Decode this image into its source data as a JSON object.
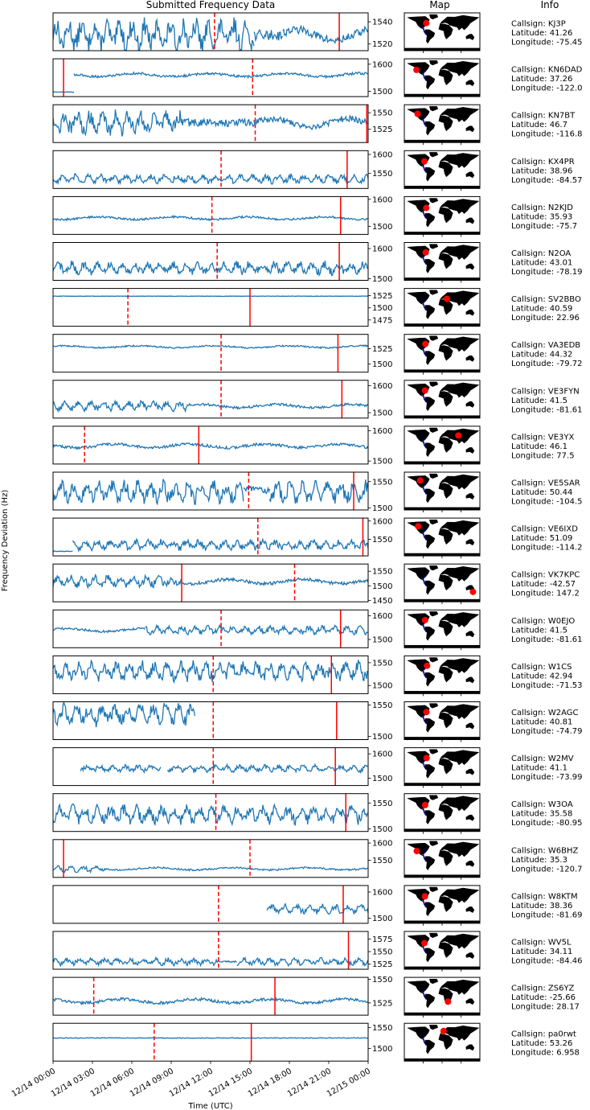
{
  "titles": {
    "data": "Submitted Frequency Data",
    "map": "Map",
    "info": "Info"
  },
  "ylabel": "Frequency Deviation (Hz)",
  "xlabel": "Time (UTC)",
  "colors": {
    "line": "#1f77b4",
    "marker": "#ff0000",
    "map_line": "#00008b"
  },
  "chart_data": {
    "type": "line",
    "x_ticks": [
      "12/14 00:00",
      "12/14 03:00",
      "12/14 06:00",
      "12/14 09:00",
      "12/14 12:00",
      "12/14 15:00",
      "12/14 18:00",
      "12/14 21:00",
      "12/15 00:00"
    ],
    "xlim_hours": [
      0,
      24
    ],
    "stations": [
      {
        "callsign": "KJ3P",
        "lat": "41.26",
        "lon": "-75.45",
        "yticks": [
          1520,
          1540
        ],
        "ylim": [
          1514,
          1548
        ],
        "base": 1528,
        "amp": 12,
        "style": "fast",
        "seg": [
          [
            0,
            15.3,
            "fast"
          ],
          [
            15.3,
            17.5,
            "flat"
          ],
          [
            17.5,
            24,
            "slow"
          ]
        ],
        "solid": [
          21.8
        ],
        "dashed": [
          12.3
        ]
      },
      {
        "callsign": "KN6DAD",
        "lat": "37.26",
        "lon": "-122.0",
        "yticks": [
          1500,
          1600
        ],
        "ylim": [
          1480,
          1620
        ],
        "base": 1560,
        "amp": 15,
        "style": "slow",
        "seg": [
          [
            0,
            1.6,
            "low"
          ],
          [
            1.6,
            24,
            "slow"
          ]
        ],
        "solid": [
          0.8
        ],
        "dashed": [
          15.2
        ]
      },
      {
        "callsign": "KN7BT",
        "lat": "46.7",
        "lon": "-116.8",
        "yticks": [
          1525,
          1550
        ],
        "ylim": [
          1505,
          1562
        ],
        "base": 1535,
        "amp": 15,
        "style": "fast",
        "seg": [
          [
            0,
            9.8,
            "fast"
          ],
          [
            9.8,
            15.3,
            "flat"
          ],
          [
            15.3,
            24,
            "slow"
          ]
        ],
        "solid": [
          23.9
        ],
        "dashed": [
          15.4
        ]
      },
      {
        "callsign": "KX4PR",
        "lat": "38.96",
        "lon": "-84.57",
        "yticks": [
          1550,
          1600
        ],
        "ylim": [
          1510,
          1610
        ],
        "base": 1535,
        "amp": 10,
        "style": "fast",
        "seg": [
          [
            0,
            24,
            "fast"
          ]
        ],
        "solid": [
          22.4
        ],
        "dashed": [
          12.8
        ]
      },
      {
        "callsign": "N2KJD",
        "lat": "35.93",
        "lon": "-75.7",
        "yticks": [
          1500,
          1600
        ],
        "ylim": [
          1470,
          1610
        ],
        "base": 1530,
        "amp": 12,
        "style": "slow",
        "seg": [
          [
            0,
            24,
            "slow"
          ]
        ],
        "solid": [
          21.9
        ],
        "dashed": [
          12.1
        ]
      },
      {
        "callsign": "N2OA",
        "lat": "43.01",
        "lon": "-78.19",
        "yticks": [
          1500,
          1600
        ],
        "ylim": [
          1495,
          1620
        ],
        "base": 1535,
        "amp": 18,
        "style": "fast",
        "seg": [
          [
            0,
            24,
            "fast"
          ]
        ],
        "solid": [
          21.8
        ],
        "dashed": [
          12.5
        ]
      },
      {
        "callsign": "SV2BBO",
        "lat": "40.59",
        "lon": "22.96",
        "yticks": [
          1475,
          1500,
          1525
        ],
        "ylim": [
          1462,
          1540
        ],
        "base": 1524,
        "amp": 1,
        "style": "flat",
        "seg": [
          [
            0,
            24,
            "flat"
          ]
        ],
        "solid": [
          15.0
        ],
        "dashed": [
          5.7
        ]
      },
      {
        "callsign": "VA3EDB",
        "lat": "44.32",
        "lon": "-79.72",
        "yticks": [
          1500,
          1525
        ],
        "ylim": [
          1487,
          1548
        ],
        "base": 1528,
        "amp": 4,
        "style": "slow",
        "seg": [
          [
            0,
            24,
            "slow"
          ]
        ],
        "solid": [
          21.7
        ],
        "dashed": [
          12.8
        ]
      },
      {
        "callsign": "VE3FYN",
        "lat": "41.5",
        "lon": "-81.61",
        "yticks": [
          1500,
          1600
        ],
        "ylim": [
          1480,
          1620
        ],
        "base": 1525,
        "amp": 15,
        "style": "fast",
        "seg": [
          [
            0,
            10.2,
            "fast"
          ],
          [
            10.2,
            24,
            "slow"
          ]
        ],
        "solid": [
          22.0
        ],
        "dashed": [
          12.8
        ]
      },
      {
        "callsign": "VE3YX",
        "lat": "46.1",
        "lon": "77.5",
        "yticks": [
          1500,
          1600
        ],
        "ylim": [
          1490,
          1615
        ],
        "base": 1550,
        "amp": 15,
        "style": "slow",
        "seg": [
          [
            0,
            24,
            "slow"
          ]
        ],
        "solid": [
          11.1
        ],
        "dashed": [
          2.4
        ]
      },
      {
        "callsign": "VE5SAR",
        "lat": "50.44",
        "lon": "-104.5",
        "yticks": [
          1500,
          1550
        ],
        "ylim": [
          1496,
          1568
        ],
        "base": 1530,
        "amp": 18,
        "style": "fast",
        "seg": [
          [
            0,
            14.5,
            "fast"
          ],
          [
            14.5,
            16.5,
            "slow"
          ],
          [
            16.5,
            24,
            "fast"
          ]
        ],
        "solid": [
          22.9
        ],
        "dashed": [
          14.9
        ]
      },
      {
        "callsign": "VE6IXD",
        "lat": "51.09",
        "lon": "-114.2",
        "yticks": [
          1550,
          1600
        ],
        "ylim": [
          1505,
          1608
        ],
        "base": 1535,
        "amp": 12,
        "style": "fast",
        "seg": [
          [
            0,
            1.5,
            "low"
          ],
          [
            1.5,
            24,
            "fast"
          ]
        ],
        "solid": [
          23.6
        ],
        "dashed": [
          15.6
        ]
      },
      {
        "callsign": "VK7KPC",
        "lat": "-42.57",
        "lon": "147.2",
        "yticks": [
          1450,
          1500,
          1550
        ],
        "ylim": [
          1445,
          1575
        ],
        "base": 1515,
        "amp": 18,
        "style": "slow",
        "seg": [
          [
            0,
            9.8,
            "fast"
          ],
          [
            9.8,
            18.5,
            "slow"
          ],
          [
            18.5,
            24,
            "slow"
          ]
        ],
        "solid": [
          9.8
        ],
        "dashed": [
          18.4
        ]
      },
      {
        "callsign": "W0EJO",
        "lat": "41.5",
        "lon": "-81.61",
        "yticks": [
          1500,
          1600
        ],
        "ylim": [
          1465,
          1625
        ],
        "base": 1540,
        "amp": 15,
        "style": "fast",
        "seg": [
          [
            0,
            7,
            "slow"
          ],
          [
            7,
            24,
            "fast"
          ]
        ],
        "solid": [
          21.9
        ],
        "dashed": [
          12.8
        ]
      },
      {
        "callsign": "W1CS",
        "lat": "42.94",
        "lon": "-71.53",
        "yticks": [
          1500,
          1550
        ],
        "ylim": [
          1482,
          1565
        ],
        "base": 1532,
        "amp": 18,
        "style": "fast",
        "seg": [
          [
            0,
            24,
            "fast"
          ]
        ],
        "solid": [
          21.2
        ],
        "dashed": [
          12.2
        ]
      },
      {
        "callsign": "W2AGC",
        "lat": "40.81",
        "lon": "-74.79",
        "yticks": [
          1500,
          1550
        ],
        "ylim": [
          1495,
          1555
        ],
        "base": 1535,
        "amp": 15,
        "style": "fast",
        "seg": [
          [
            0,
            10.8,
            "fast"
          ]
        ],
        "solid": [
          21.6
        ],
        "dashed": [
          12.2
        ]
      },
      {
        "callsign": "W2MV",
        "lat": "41.1",
        "lon": "-73.99",
        "yticks": [
          1500,
          1600
        ],
        "ylim": [
          1470,
          1625
        ],
        "base": 1540,
        "amp": 12,
        "style": "fast",
        "seg": [
          [
            2.1,
            8.2,
            "fast"
          ],
          [
            8.7,
            24,
            "fast"
          ]
        ],
        "solid": [
          21.5
        ],
        "dashed": [
          12.2
        ]
      },
      {
        "callsign": "W3OA",
        "lat": "35.58",
        "lon": "-80.95",
        "yticks": [
          1500,
          1550
        ],
        "ylim": [
          1495,
          1568
        ],
        "base": 1528,
        "amp": 15,
        "style": "fast",
        "seg": [
          [
            0,
            24,
            "fast"
          ]
        ],
        "solid": [
          22.3
        ],
        "dashed": [
          12.4
        ]
      },
      {
        "callsign": "W6BHZ",
        "lat": "35.3",
        "lon": "-120.7",
        "yticks": [
          1550,
          1600
        ],
        "ylim": [
          1500,
          1610
        ],
        "base": 1525,
        "amp": 8,
        "style": "slow",
        "seg": [
          [
            0,
            4,
            "fast"
          ],
          [
            4,
            24,
            "slow"
          ]
        ],
        "solid": [
          0.8
        ],
        "dashed": [
          15.0
        ]
      },
      {
        "callsign": "W8KTM",
        "lat": "38.36",
        "lon": "-81.69",
        "yticks": [
          1500,
          1600
        ],
        "ylim": [
          1480,
          1625
        ],
        "base": 1535,
        "amp": 15,
        "style": "fast",
        "seg": [
          [
            16.3,
            24,
            "fast"
          ]
        ],
        "solid": [
          22.1
        ],
        "dashed": [
          12.6
        ]
      },
      {
        "callsign": "WV5L",
        "lat": "34.11",
        "lon": "-84.46",
        "yticks": [
          1525,
          1550,
          1575
        ],
        "ylim": [
          1515,
          1590
        ],
        "base": 1530,
        "amp": 6,
        "style": "fast",
        "seg": [
          [
            0,
            12.5,
            "fast"
          ],
          [
            12.5,
            14,
            "flat"
          ],
          [
            14,
            24,
            "fast"
          ]
        ],
        "solid": [
          22.5
        ],
        "dashed": [
          12.6
        ]
      },
      {
        "callsign": "ZS6YZ",
        "lat": "-25.66",
        "lon": "28.17",
        "yticks": [
          1525,
          1550
        ],
        "ylim": [
          1512,
          1552
        ],
        "base": 1527,
        "amp": 5,
        "style": "slow",
        "seg": [
          [
            0,
            24,
            "slow"
          ]
        ],
        "solid": [
          16.9
        ],
        "dashed": [
          3.1
        ]
      },
      {
        "callsign": "pa0rwt",
        "lat": "53.26",
        "lon": "6.958",
        "yticks": [
          1500,
          1550
        ],
        "ylim": [
          1470,
          1560
        ],
        "base": 1525,
        "amp": 2,
        "style": "flat",
        "seg": [
          [
            0,
            24,
            "flat"
          ]
        ],
        "solid": [
          15.1
        ],
        "dashed": [
          7.7
        ]
      }
    ]
  }
}
